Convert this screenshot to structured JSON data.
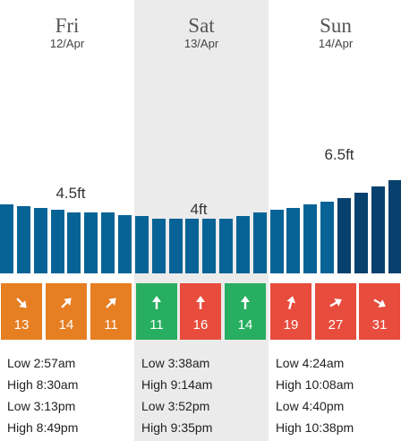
{
  "colors": {
    "bar_light": "#076396",
    "bar_dark": "#08416d",
    "orange": "#e67e22",
    "green": "#27ae60",
    "red": "#e74c3c",
    "highlight_bg": "#ebebeb"
  },
  "days": [
    {
      "name": "Fri",
      "date": "12/Apr",
      "highlight": false
    },
    {
      "name": "Sat",
      "date": "13/Apr",
      "highlight": true
    },
    {
      "name": "Sun",
      "date": "14/Apr",
      "highlight": false
    }
  ],
  "swell_labels": [
    "4.5ft",
    "4ft",
    "6.5ft"
  ],
  "swell_bars": [
    {
      "height_ft": 4.65,
      "tone": "light"
    },
    {
      "height_ft": 4.55,
      "tone": "light"
    },
    {
      "height_ft": 4.45,
      "tone": "light"
    },
    {
      "height_ft": 4.3,
      "tone": "light"
    },
    {
      "height_ft": 4.15,
      "tone": "light"
    },
    {
      "height_ft": 4.15,
      "tone": "light"
    },
    {
      "height_ft": 4.15,
      "tone": "light"
    },
    {
      "height_ft": 3.95,
      "tone": "light"
    },
    {
      "height_ft": 3.9,
      "tone": "light"
    },
    {
      "height_ft": 3.7,
      "tone": "light"
    },
    {
      "height_ft": 3.7,
      "tone": "light"
    },
    {
      "height_ft": 3.7,
      "tone": "light"
    },
    {
      "height_ft": 3.7,
      "tone": "light"
    },
    {
      "height_ft": 3.7,
      "tone": "light"
    },
    {
      "height_ft": 3.85,
      "tone": "light"
    },
    {
      "height_ft": 4.1,
      "tone": "light"
    },
    {
      "height_ft": 4.3,
      "tone": "light"
    },
    {
      "height_ft": 4.45,
      "tone": "light"
    },
    {
      "height_ft": 4.65,
      "tone": "light"
    },
    {
      "height_ft": 4.85,
      "tone": "light"
    },
    {
      "height_ft": 5.1,
      "tone": "dark"
    },
    {
      "height_ft": 5.45,
      "tone": "dark"
    },
    {
      "height_ft": 5.85,
      "tone": "dark"
    },
    {
      "height_ft": 6.3,
      "tone": "dark"
    },
    {
      "height_ft": 6.65,
      "tone": "dark"
    }
  ],
  "wind": [
    {
      "speed": "13",
      "dir_deg": 135,
      "color": "orange"
    },
    {
      "speed": "14",
      "dir_deg": 45,
      "color": "orange"
    },
    {
      "speed": "11",
      "dir_deg": 45,
      "color": "orange"
    },
    {
      "speed": "11",
      "dir_deg": 0,
      "color": "green"
    },
    {
      "speed": "16",
      "dir_deg": 0,
      "color": "red"
    },
    {
      "speed": "14",
      "dir_deg": 0,
      "color": "green"
    },
    {
      "speed": "19",
      "dir_deg": 15,
      "color": "red"
    },
    {
      "speed": "27",
      "dir_deg": 60,
      "color": "red"
    },
    {
      "speed": "31",
      "dir_deg": 120,
      "color": "red"
    }
  ],
  "tides": [
    [
      "Low 2:57am",
      "High 8:30am",
      "Low 3:13pm",
      "High 8:49pm"
    ],
    [
      "Low 3:38am",
      "High 9:14am",
      "Low 3:52pm",
      "High 9:35pm"
    ],
    [
      "Low 4:24am",
      "High 10:08am",
      "Low 4:40pm",
      "High 10:38pm"
    ]
  ]
}
